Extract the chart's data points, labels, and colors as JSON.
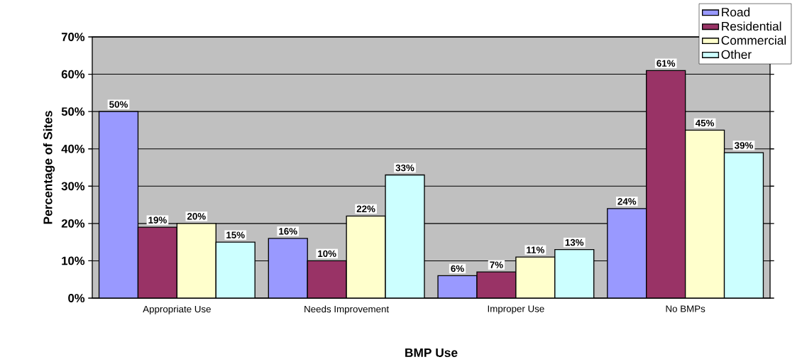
{
  "chart_data": {
    "type": "bar",
    "xlabel": "BMP Use",
    "ylabel": "Percentage of Sites",
    "categories": [
      "Appropriate Use",
      "Needs Improvement",
      "Improper Use",
      "No BMPs"
    ],
    "series": [
      {
        "name": "Road",
        "color": "#9999ff",
        "values": [
          50,
          16,
          6,
          24
        ],
        "value_labels": [
          "50%",
          "16%",
          "6%",
          "24%"
        ]
      },
      {
        "name": "Residential",
        "color": "#993366",
        "values": [
          19,
          10,
          7,
          61
        ],
        "value_labels": [
          "19%",
          "10%",
          "7%",
          "61%"
        ]
      },
      {
        "name": "Commercial",
        "color": "#ffffcc",
        "values": [
          20,
          22,
          11,
          45
        ],
        "value_labels": [
          "20%",
          "22%",
          "11%",
          "45%"
        ]
      },
      {
        "name": "Other",
        "color": "#ccffff",
        "values": [
          15,
          33,
          13,
          39
        ],
        "value_labels": [
          "15%",
          "33%",
          "13%",
          "39%"
        ]
      }
    ],
    "ylim": [
      0,
      70
    ],
    "yticks": [
      {
        "value": 0,
        "label": "0%"
      },
      {
        "value": 10,
        "label": "10%"
      },
      {
        "value": 20,
        "label": "20%"
      },
      {
        "value": 30,
        "label": "30%"
      },
      {
        "value": 40,
        "label": "40%"
      },
      {
        "value": 50,
        "label": "50%"
      },
      {
        "value": 60,
        "label": "60%"
      },
      {
        "value": 70,
        "label": "70%"
      }
    ],
    "grid": "y",
    "legend": "top right"
  }
}
